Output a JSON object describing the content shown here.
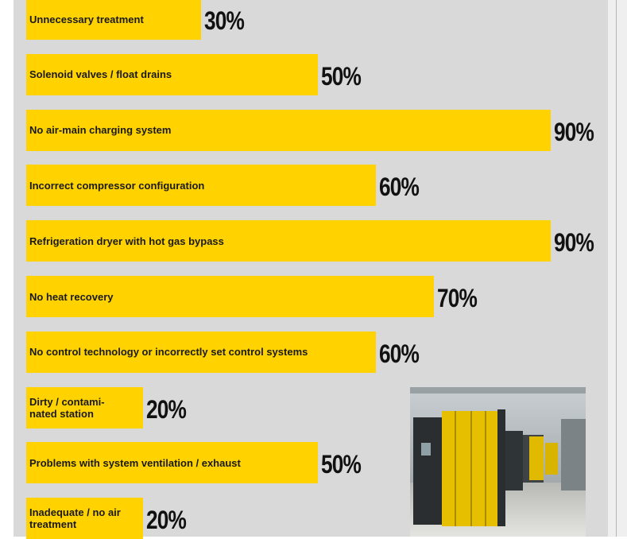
{
  "chart_data": {
    "type": "bar",
    "orientation": "horizontal",
    "color": "#ffd200",
    "categories": [
      "Unnecessary treatment",
      "Solenoid valves / float drains",
      "No air-main charging system",
      "Incorrect compressor configuration",
      "Refrigeration dryer with hot gas bypass",
      "No heat recovery",
      "No control technology or incorrectly set control systems",
      "Dirty / contami-\nnated station",
      "Problems with system ventilation / exhaust",
      "Inadequate / no air\ntreatment"
    ],
    "values": [
      30,
      50,
      90,
      60,
      90,
      70,
      60,
      20,
      50,
      20
    ],
    "value_labels": [
      "30%",
      "50%",
      "90%",
      "60%",
      "90%",
      "70%",
      "60%",
      "20%",
      "50%",
      "20%"
    ]
  }
}
